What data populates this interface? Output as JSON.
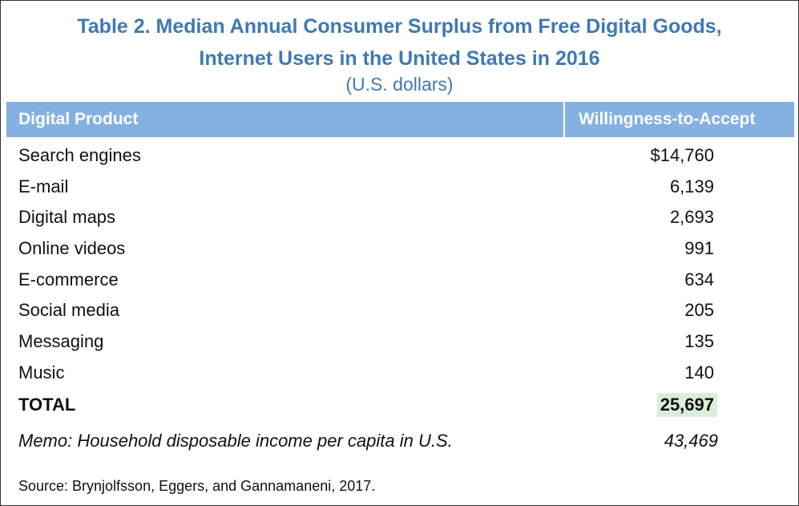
{
  "table": {
    "title_line1": "Table 2. Median Annual Consumer Surplus from Free Digital Goods,",
    "title_line2": "Internet Users in the United States in 2016",
    "subtitle": "(U.S. dollars)",
    "columns": [
      "Digital Product",
      "Willingness-to-Accept"
    ],
    "rows": [
      {
        "product": "Search engines",
        "value": "$14,760"
      },
      {
        "product": "E-mail",
        "value": "6,139"
      },
      {
        "product": "Digital maps",
        "value": "2,693"
      },
      {
        "product": "Online videos",
        "value": "991"
      },
      {
        "product": "E-commerce",
        "value": "634"
      },
      {
        "product": "Social media",
        "value": "205"
      },
      {
        "product": "Messaging",
        "value": "135"
      },
      {
        "product": "Music",
        "value": "140"
      }
    ],
    "total": {
      "label": "TOTAL",
      "value": "25,697"
    },
    "memo": {
      "label": "Memo: Household disposable income per capita in U.S.",
      "value": "43,469"
    },
    "source": "Source: Brynjolfsson, Eggers, and Gannamaneni, 2017."
  },
  "colors": {
    "title": "#3f79b2",
    "header_background": "#84b1e0",
    "header_text": "#ffffff",
    "total_highlight": "#d9eedb",
    "border": "#333333"
  }
}
